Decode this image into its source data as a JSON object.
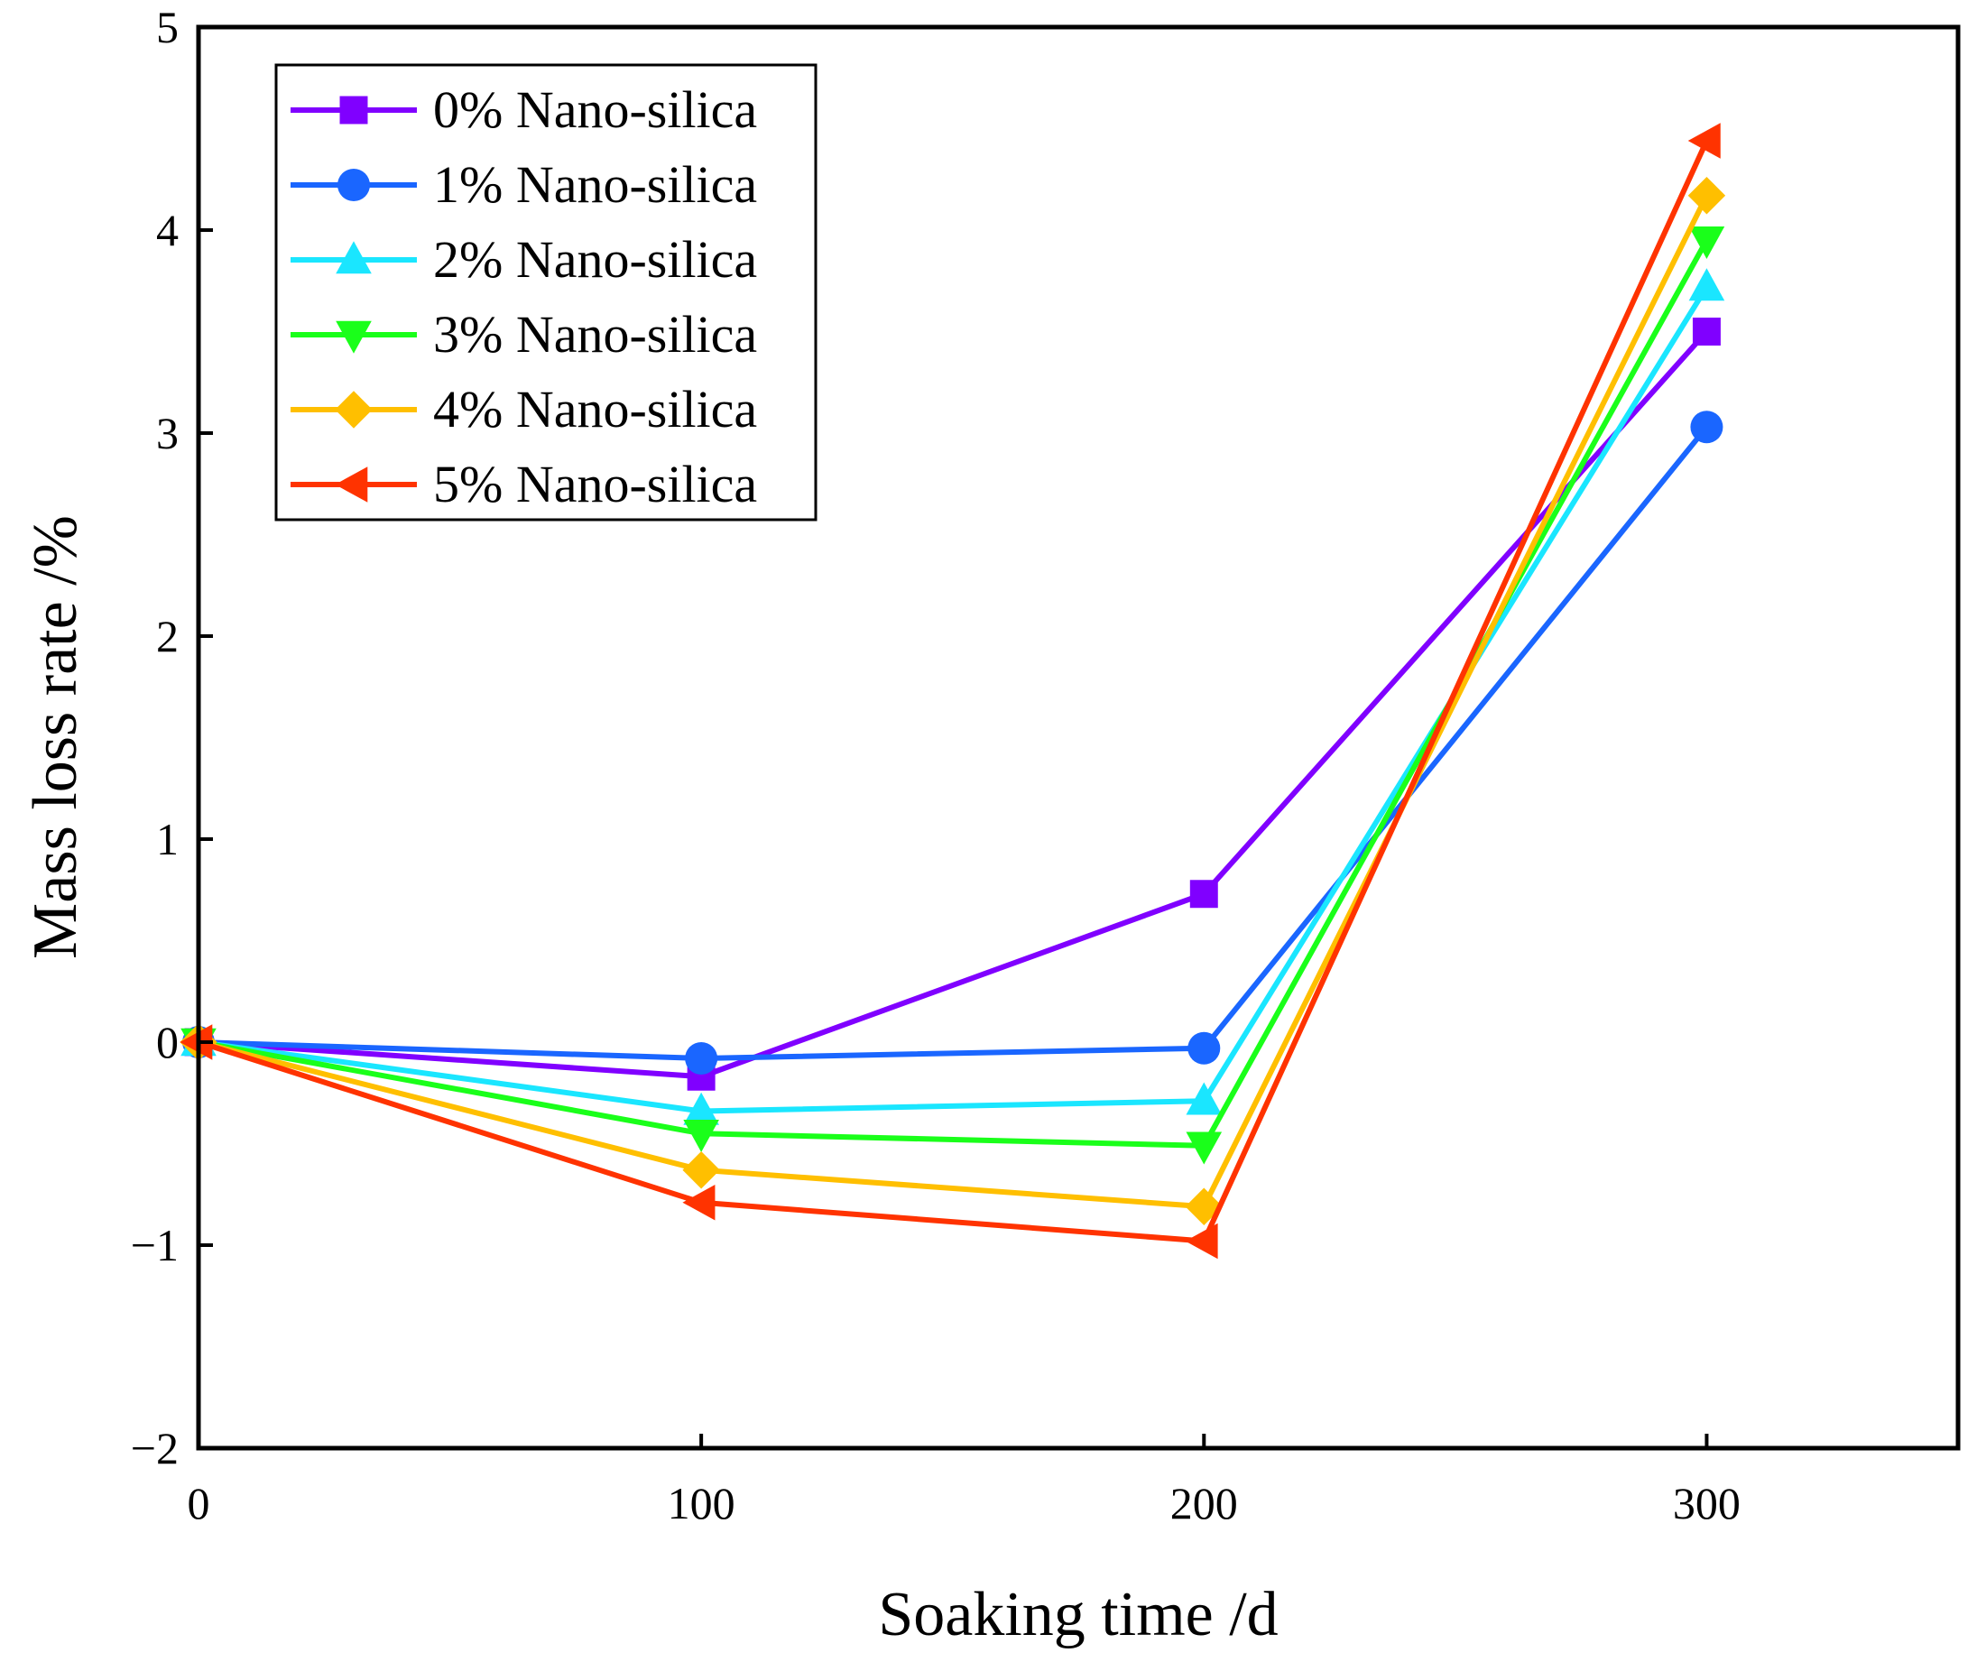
{
  "chart_data": {
    "type": "line",
    "title": "",
    "xlabel": "Soaking time /d",
    "ylabel": "Mass loss rate /%",
    "xlim": [
      0,
      350
    ],
    "ylim": [
      -2,
      5
    ],
    "xticks": [
      0,
      100,
      200,
      300
    ],
    "xtick_labels": [
      "0",
      "100",
      "200",
      "300"
    ],
    "yticks": [
      -2,
      -1,
      0,
      1,
      2,
      3,
      4,
      5
    ],
    "ytick_labels": [
      "−2",
      "−1",
      "0",
      "1",
      "2",
      "3",
      "4",
      "5"
    ],
    "grid": false,
    "legend_position": "top-left",
    "x": [
      0,
      100,
      200,
      300
    ],
    "series": [
      {
        "name": "0% Nano-silica",
        "color": "#8000ff",
        "marker": "square",
        "values": [
          0,
          -0.17,
          0.73,
          3.5
        ]
      },
      {
        "name": "1% Nano-silica",
        "color": "#1a66ff",
        "marker": "circle",
        "values": [
          0,
          -0.08,
          -0.03,
          3.03
        ]
      },
      {
        "name": "2% Nano-silica",
        "color": "#1ae6ff",
        "marker": "triangle-up",
        "values": [
          0,
          -0.34,
          -0.29,
          3.72
        ]
      },
      {
        "name": "3% Nano-silica",
        "color": "#1aff1a",
        "marker": "triangle-down",
        "values": [
          0,
          -0.45,
          -0.51,
          3.95
        ]
      },
      {
        "name": "4% Nano-silica",
        "color": "#ffbf00",
        "marker": "diamond",
        "values": [
          0,
          -0.63,
          -0.81,
          4.17
        ]
      },
      {
        "name": "5% Nano-silica",
        "color": "#ff3300",
        "marker": "triangle-left",
        "values": [
          0,
          -0.79,
          -0.98,
          4.44
        ]
      }
    ]
  }
}
